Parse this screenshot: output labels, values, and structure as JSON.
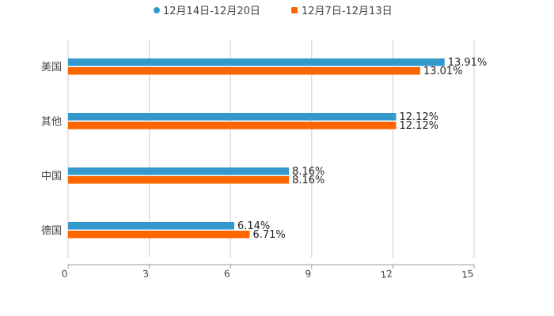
{
  "chart_data": {
    "type": "bar",
    "orientation": "horizontal",
    "categories": [
      "美国",
      "其他",
      "中国",
      "德国"
    ],
    "series": [
      {
        "name": "12月14日-12月20日",
        "color": "#3399cc",
        "values": [
          13.91,
          12.12,
          8.16,
          6.14
        ],
        "labels": [
          "13.91%",
          "12.12%",
          "8.16%",
          "6.14%"
        ]
      },
      {
        "name": "12月7日-12月13日",
        "color": "#ff6600",
        "values": [
          13.01,
          12.12,
          8.16,
          6.71
        ],
        "labels": [
          "13.01%",
          "12.12%",
          "8.16%",
          "6.71%"
        ]
      }
    ],
    "xlim": [
      0,
      15
    ],
    "xticks": [
      "0",
      "3",
      "6",
      "9",
      "12",
      "15"
    ],
    "grid": true,
    "legend": "top-center",
    "title": "",
    "xlabel": "",
    "ylabel": ""
  }
}
